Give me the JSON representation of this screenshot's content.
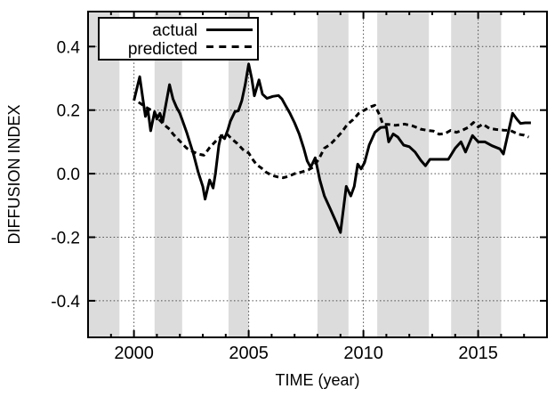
{
  "figure": {
    "type": "statistical line chart",
    "background": "#ffffff",
    "frame_color": "#000000"
  },
  "chart_data": {
    "type": "line",
    "title": "",
    "xlabel": "TIME (year)",
    "ylabel": "DIFFUSION INDEX",
    "xlim": [
      1998,
      2018
    ],
    "ylim": [
      -0.515,
      0.51
    ],
    "grid": "dotted",
    "legend_position": "top-left",
    "band_color": "#dcdcdc",
    "x_ticks": [
      {
        "value": 2000,
        "label": "2000"
      },
      {
        "value": 2005,
        "label": "2005"
      },
      {
        "value": 2010,
        "label": "2010"
      },
      {
        "value": 2015,
        "label": "2015"
      }
    ],
    "x_minor_tick_interval": 1,
    "y_ticks": [
      {
        "value": 0.4,
        "label": "0.4"
      },
      {
        "value": 0.2,
        "label": "0.2"
      },
      {
        "value": 0.0,
        "label": "0.0"
      },
      {
        "value": -0.2,
        "label": "-0.2"
      },
      {
        "value": -0.4,
        "label": "-0.4"
      }
    ],
    "shaded_bands": [
      [
        1998.0,
        1999.37
      ],
      [
        2000.9,
        2002.1
      ],
      [
        2004.12,
        2005.0
      ],
      [
        2008.0,
        2009.35
      ],
      [
        2010.6,
        2012.85
      ],
      [
        2013.82,
        2016.0
      ]
    ],
    "series": [
      {
        "name": "actual",
        "style": "solid",
        "color": "#000000",
        "points": [
          [
            2000.0,
            0.23
          ],
          [
            2000.25,
            0.305
          ],
          [
            2000.4,
            0.23
          ],
          [
            2000.5,
            0.18
          ],
          [
            2000.6,
            0.205
          ],
          [
            2000.73,
            0.135
          ],
          [
            2000.9,
            0.195
          ],
          [
            2001.0,
            0.172
          ],
          [
            2001.13,
            0.19
          ],
          [
            2001.25,
            0.163
          ],
          [
            2001.55,
            0.28
          ],
          [
            2001.7,
            0.235
          ],
          [
            2001.85,
            0.21
          ],
          [
            2002.0,
            0.19
          ],
          [
            2002.1,
            0.17
          ],
          [
            2002.3,
            0.13
          ],
          [
            2002.45,
            0.095
          ],
          [
            2002.6,
            0.06
          ],
          [
            2002.8,
            0.005
          ],
          [
            2003.0,
            -0.04
          ],
          [
            2003.1,
            -0.08
          ],
          [
            2003.3,
            -0.02
          ],
          [
            2003.45,
            -0.045
          ],
          [
            2003.55,
            0.0
          ],
          [
            2003.7,
            0.09
          ],
          [
            2003.8,
            0.12
          ],
          [
            2003.95,
            0.11
          ],
          [
            2004.1,
            0.14
          ],
          [
            2004.2,
            0.165
          ],
          [
            2004.4,
            0.195
          ],
          [
            2004.55,
            0.198
          ],
          [
            2004.7,
            0.23
          ],
          [
            2004.85,
            0.28
          ],
          [
            2005.0,
            0.345
          ],
          [
            2005.13,
            0.3
          ],
          [
            2005.25,
            0.245
          ],
          [
            2005.45,
            0.295
          ],
          [
            2005.6,
            0.25
          ],
          [
            2005.8,
            0.237
          ],
          [
            2006.05,
            0.243
          ],
          [
            2006.3,
            0.246
          ],
          [
            2006.45,
            0.235
          ],
          [
            2006.6,
            0.215
          ],
          [
            2006.8,
            0.19
          ],
          [
            2007.0,
            0.16
          ],
          [
            2007.2,
            0.125
          ],
          [
            2007.4,
            0.08
          ],
          [
            2007.55,
            0.04
          ],
          [
            2007.7,
            0.02
          ],
          [
            2007.9,
            0.05
          ],
          [
            2008.1,
            -0.02
          ],
          [
            2008.3,
            -0.07
          ],
          [
            2008.55,
            -0.11
          ],
          [
            2008.8,
            -0.15
          ],
          [
            2009.0,
            -0.185
          ],
          [
            2009.25,
            -0.04
          ],
          [
            2009.45,
            -0.07
          ],
          [
            2009.6,
            -0.04
          ],
          [
            2009.75,
            0.03
          ],
          [
            2009.9,
            0.015
          ],
          [
            2010.05,
            0.035
          ],
          [
            2010.25,
            0.09
          ],
          [
            2010.5,
            0.13
          ],
          [
            2010.75,
            0.145
          ],
          [
            2011.0,
            0.147
          ],
          [
            2011.1,
            0.1
          ],
          [
            2011.3,
            0.125
          ],
          [
            2011.5,
            0.115
          ],
          [
            2011.75,
            0.09
          ],
          [
            2012.0,
            0.085
          ],
          [
            2012.25,
            0.068
          ],
          [
            2012.5,
            0.042
          ],
          [
            2012.7,
            0.025
          ],
          [
            2012.9,
            0.045
          ],
          [
            2013.7,
            0.045
          ],
          [
            2014.0,
            0.08
          ],
          [
            2014.25,
            0.1
          ],
          [
            2014.45,
            0.068
          ],
          [
            2014.75,
            0.12
          ],
          [
            2015.0,
            0.1
          ],
          [
            2015.3,
            0.1
          ],
          [
            2015.6,
            0.088
          ],
          [
            2015.95,
            0.078
          ],
          [
            2016.1,
            0.062
          ],
          [
            2016.5,
            0.19
          ],
          [
            2016.7,
            0.17
          ],
          [
            2016.85,
            0.158
          ],
          [
            2017.05,
            0.16
          ],
          [
            2017.3,
            0.16
          ]
        ]
      },
      {
        "name": "predicted",
        "style": "dashed",
        "color": "#000000",
        "points": [
          [
            2000.2,
            0.225
          ],
          [
            2000.5,
            0.21
          ],
          [
            2000.87,
            0.195
          ],
          [
            2001.1,
            0.17
          ],
          [
            2001.3,
            0.155
          ],
          [
            2001.55,
            0.14
          ],
          [
            2001.7,
            0.125
          ],
          [
            2001.9,
            0.11
          ],
          [
            2002.1,
            0.095
          ],
          [
            2002.3,
            0.08
          ],
          [
            2002.55,
            0.07
          ],
          [
            2002.8,
            0.062
          ],
          [
            2003.05,
            0.058
          ],
          [
            2003.3,
            0.082
          ],
          [
            2003.6,
            0.105
          ],
          [
            2003.85,
            0.12
          ],
          [
            2004.05,
            0.125
          ],
          [
            2004.25,
            0.11
          ],
          [
            2004.5,
            0.095
          ],
          [
            2004.8,
            0.072
          ],
          [
            2005.0,
            0.065
          ],
          [
            2005.15,
            0.047
          ],
          [
            2005.35,
            0.028
          ],
          [
            2005.55,
            0.018
          ],
          [
            2005.75,
            0.005
          ],
          [
            2006.0,
            -0.005
          ],
          [
            2006.25,
            -0.01
          ],
          [
            2006.5,
            -0.013
          ],
          [
            2006.75,
            -0.008
          ],
          [
            2007.0,
            0.0
          ],
          [
            2007.3,
            0.005
          ],
          [
            2007.6,
            0.012
          ],
          [
            2007.8,
            0.02
          ],
          [
            2008.05,
            0.045
          ],
          [
            2008.3,
            0.08
          ],
          [
            2008.55,
            0.092
          ],
          [
            2008.8,
            0.11
          ],
          [
            2009.05,
            0.13
          ],
          [
            2009.3,
            0.155
          ],
          [
            2009.55,
            0.17
          ],
          [
            2009.8,
            0.19
          ],
          [
            2010.05,
            0.2
          ],
          [
            2010.3,
            0.21
          ],
          [
            2010.5,
            0.215
          ],
          [
            2010.7,
            0.185
          ],
          [
            2010.85,
            0.155
          ],
          [
            2011.1,
            0.155
          ],
          [
            2011.4,
            0.152
          ],
          [
            2011.8,
            0.156
          ],
          [
            2012.15,
            0.15
          ],
          [
            2012.5,
            0.14
          ],
          [
            2012.8,
            0.136
          ],
          [
            2013.05,
            0.134
          ],
          [
            2013.3,
            0.124
          ],
          [
            2013.55,
            0.126
          ],
          [
            2013.8,
            0.136
          ],
          [
            2014.05,
            0.13
          ],
          [
            2014.3,
            0.136
          ],
          [
            2014.55,
            0.145
          ],
          [
            2014.8,
            0.161
          ],
          [
            2015.0,
            0.147
          ],
          [
            2015.2,
            0.156
          ],
          [
            2015.5,
            0.142
          ],
          [
            2015.8,
            0.139
          ],
          [
            2016.1,
            0.137
          ],
          [
            2016.4,
            0.136
          ],
          [
            2016.75,
            0.124
          ],
          [
            2017.0,
            0.121
          ],
          [
            2017.2,
            0.115
          ]
        ]
      }
    ],
    "legend": {
      "entries": [
        "actual",
        "predicted"
      ]
    }
  }
}
